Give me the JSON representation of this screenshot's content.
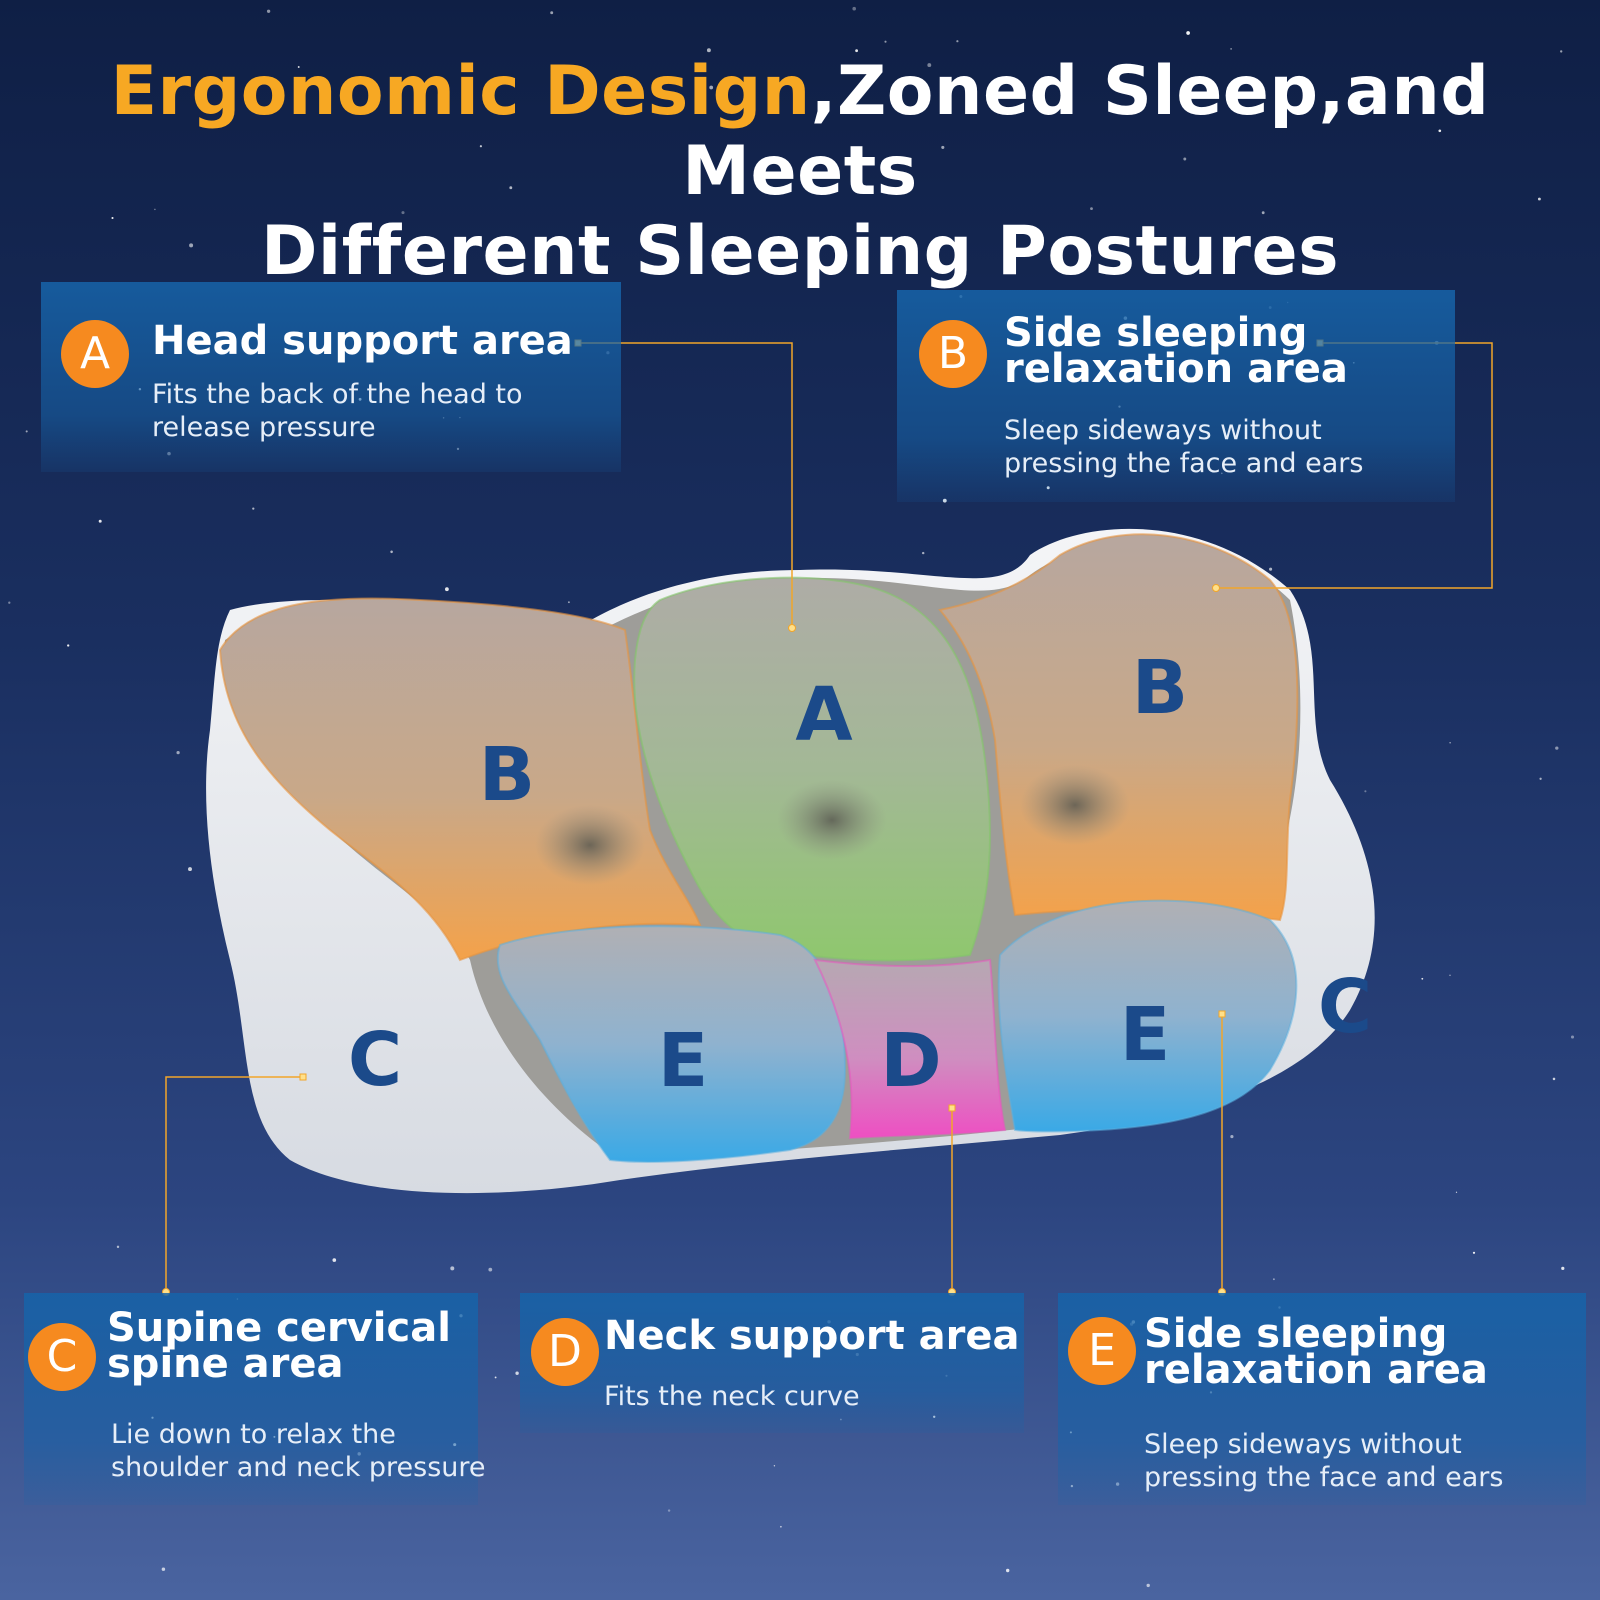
{
  "title": {
    "highlight": "Ergonomic Design",
    "rest_line1": ",Zoned Sleep,and Meets",
    "line2": "Different Sleeping Postures"
  },
  "colors": {
    "accent": "#f7a823",
    "badge": "#f68a1f",
    "card": "#1664aa",
    "zone_orange": "#f4a24a",
    "zone_green": "#8fc76e",
    "zone_blue": "#4aaee6",
    "zone_pink": "#ee4fc2",
    "zone_label": "#1b4a8a"
  },
  "cards": [
    {
      "letter": "A",
      "title_lines": [
        "Head support area"
      ],
      "desc_lines": [
        "Fits the back of the head to",
        "release pressure"
      ]
    },
    {
      "letter": "B",
      "title_lines": [
        "Side sleeping",
        "relaxation area"
      ],
      "desc_lines": [
        "Sleep sideways without",
        "pressing the face and ears"
      ]
    },
    {
      "letter": "C",
      "title_lines": [
        "Supine cervical",
        "spine area"
      ],
      "desc_lines": [
        "Lie down to relax the",
        "shoulder and neck pressure"
      ]
    },
    {
      "letter": "D",
      "title_lines": [
        "Neck support area"
      ],
      "desc_lines": [
        "Fits the neck curve"
      ]
    },
    {
      "letter": "E",
      "title_lines": [
        "Side sleeping",
        "relaxation area"
      ],
      "desc_lines": [
        "Sleep sideways without",
        "pressing the face and ears"
      ]
    }
  ],
  "zone_labels": {
    "b_left": "B",
    "a": "A",
    "b_right": "B",
    "c_left": "C",
    "e_left": "E",
    "d": "D",
    "e_right": "E",
    "c_right": "C"
  }
}
